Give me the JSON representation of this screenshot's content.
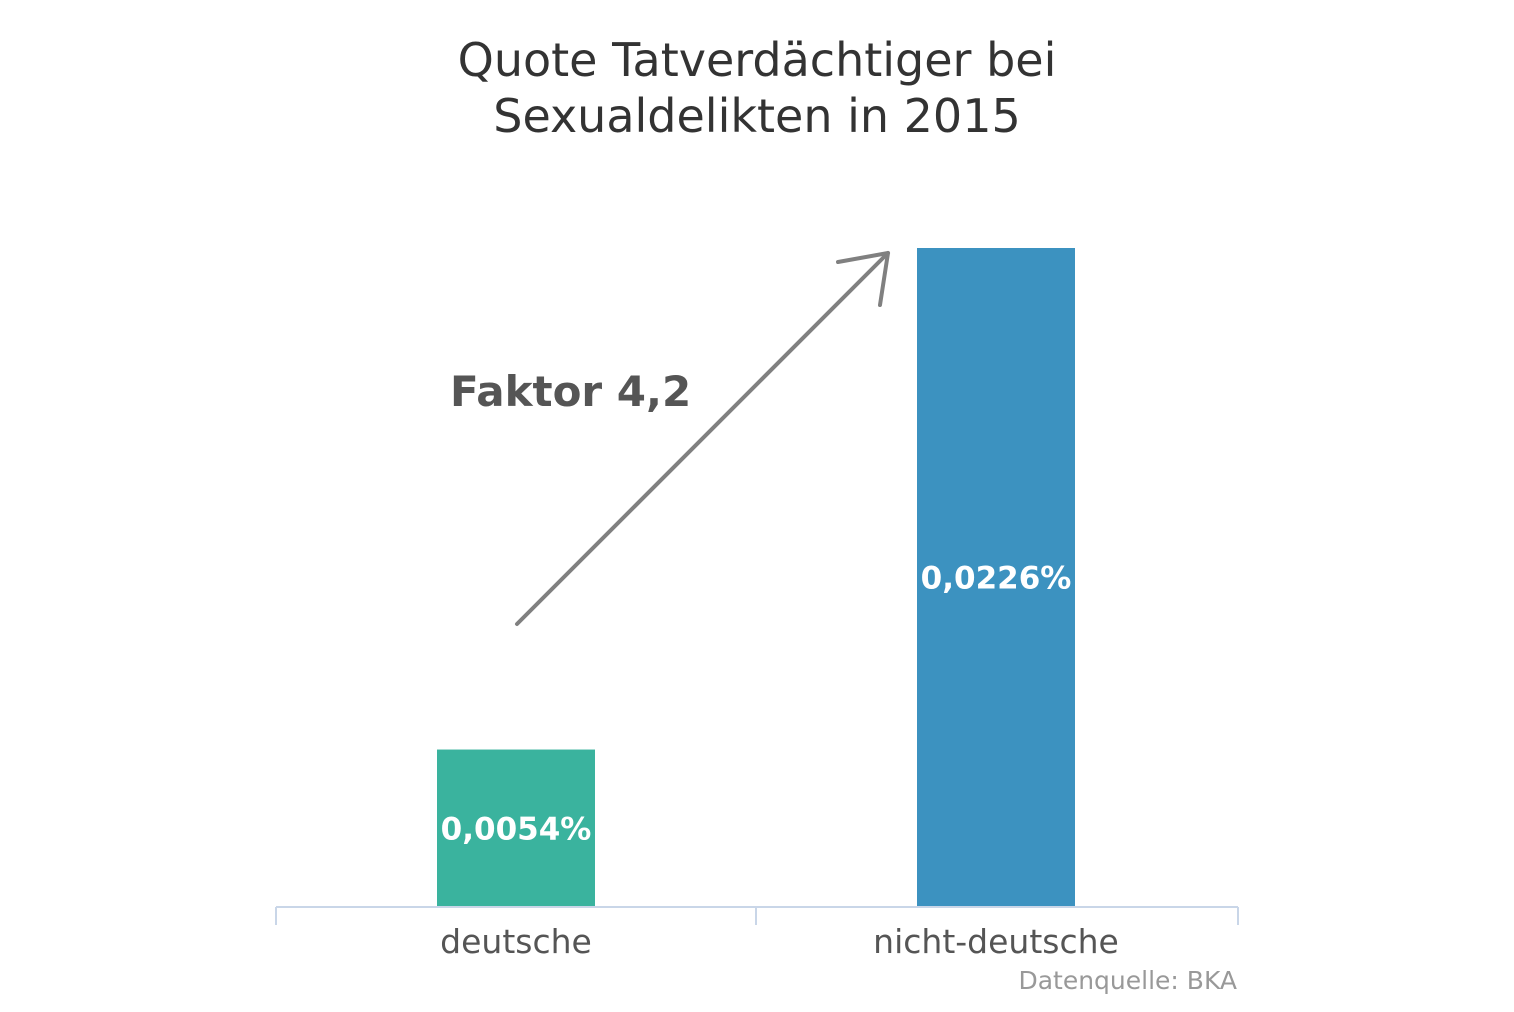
{
  "chart_data": {
    "type": "bar",
    "title": [
      "Quote Tatverdächtiger bei",
      "Sexualdelikten in 2015"
    ],
    "categories": [
      "deutsche",
      "nicht-deutsche"
    ],
    "values": [
      0.0054,
      0.0226
    ],
    "data_labels": [
      "0,0054%",
      "0,0226%"
    ],
    "colors": [
      "#3ab39e",
      "#3c92c0"
    ],
    "ylim": [
      0,
      0.0226
    ],
    "grid": false,
    "annotation": {
      "text": "Faktor 4,2",
      "arrow": "from deutsche bar up to nicht-deutsche bar"
    },
    "source": "Datenquelle: BKA",
    "axis_color": "#c9d6e8",
    "arrow_color": "#808080"
  }
}
